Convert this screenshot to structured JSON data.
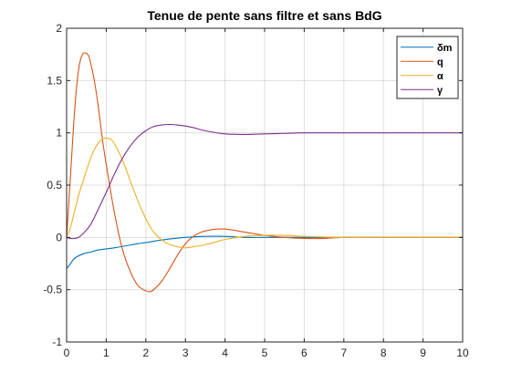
{
  "chart_data": {
    "type": "line",
    "title": "Tenue de pente sans filtre et sans BdG",
    "xlabel": "",
    "ylabel": "",
    "xlim": [
      0,
      10
    ],
    "ylim": [
      -1,
      2
    ],
    "xticks": [
      "0",
      "1",
      "2",
      "3",
      "4",
      "5",
      "6",
      "7",
      "8",
      "9",
      "10"
    ],
    "yticks": [
      "-1",
      "-0.5",
      "0",
      "0.5",
      "1",
      "1.5",
      "2"
    ],
    "grid": true,
    "legend_position": "top-right",
    "series": [
      {
        "name": "δm",
        "color": "#0072BD",
        "x": [
          0,
          0.1,
          0.2,
          0.4,
          0.6,
          0.8,
          1.0,
          1.2,
          1.5,
          1.8,
          2.0,
          2.3,
          2.6,
          3.0,
          3.5,
          4.0,
          4.5,
          5.0,
          5.5,
          6.0,
          7.0,
          8.0,
          9.0,
          10.0
        ],
        "y": [
          -0.3,
          -0.25,
          -0.2,
          -0.16,
          -0.14,
          -0.12,
          -0.11,
          -0.1,
          -0.08,
          -0.06,
          -0.05,
          -0.03,
          -0.015,
          0.0,
          0.01,
          0.01,
          0.0,
          0.0,
          0.0,
          0.0,
          0.0,
          0.0,
          0.0,
          0.0
        ]
      },
      {
        "name": "q",
        "color": "#D95319",
        "x": [
          0,
          0.1,
          0.2,
          0.3,
          0.4,
          0.5,
          0.55,
          0.6,
          0.7,
          0.8,
          0.9,
          1.0,
          1.2,
          1.4,
          1.6,
          1.8,
          2.0,
          2.1,
          2.2,
          2.4,
          2.6,
          2.8,
          3.0,
          3.2,
          3.4,
          3.6,
          3.8,
          4.0,
          4.2,
          4.5,
          5.0,
          5.5,
          6.0,
          6.5,
          7.0,
          8.0,
          9.0,
          10.0
        ],
        "y": [
          0.0,
          0.6,
          1.2,
          1.6,
          1.75,
          1.76,
          1.74,
          1.68,
          1.5,
          1.25,
          0.95,
          0.7,
          0.25,
          -0.1,
          -0.32,
          -0.46,
          -0.51,
          -0.52,
          -0.5,
          -0.42,
          -0.3,
          -0.17,
          -0.06,
          0.01,
          0.05,
          0.07,
          0.08,
          0.08,
          0.07,
          0.05,
          0.02,
          0.0,
          -0.01,
          -0.01,
          0.0,
          0.0,
          0.0,
          0.0
        ]
      },
      {
        "name": "α",
        "color": "#EDB120",
        "x": [
          0,
          0.1,
          0.2,
          0.3,
          0.4,
          0.5,
          0.6,
          0.7,
          0.8,
          0.9,
          1.0,
          1.1,
          1.2,
          1.4,
          1.6,
          1.8,
          2.0,
          2.2,
          2.5,
          2.8,
          3.0,
          3.2,
          3.5,
          3.8,
          4.0,
          4.5,
          5.0,
          5.5,
          6.0,
          7.0,
          8.0,
          9.0,
          10.0
        ],
        "y": [
          0.0,
          0.1,
          0.25,
          0.4,
          0.52,
          0.64,
          0.75,
          0.84,
          0.9,
          0.94,
          0.95,
          0.94,
          0.9,
          0.75,
          0.55,
          0.35,
          0.18,
          0.05,
          -0.05,
          -0.09,
          -0.1,
          -0.09,
          -0.07,
          -0.04,
          -0.02,
          0.01,
          0.02,
          0.02,
          0.01,
          0.0,
          0.0,
          0.0,
          0.0
        ]
      },
      {
        "name": "γ",
        "color": "#7E2F8E",
        "x": [
          0,
          0.1,
          0.2,
          0.3,
          0.4,
          0.6,
          0.8,
          1.0,
          1.2,
          1.4,
          1.6,
          1.8,
          2.0,
          2.2,
          2.4,
          2.6,
          2.8,
          3.0,
          3.2,
          3.5,
          4.0,
          4.5,
          5.0,
          5.5,
          6.0,
          7.0,
          8.0,
          9.0,
          10.0
        ],
        "y": [
          0.0,
          -0.01,
          -0.01,
          0.0,
          0.03,
          0.12,
          0.27,
          0.43,
          0.6,
          0.75,
          0.87,
          0.96,
          1.02,
          1.06,
          1.075,
          1.08,
          1.075,
          1.065,
          1.05,
          1.02,
          0.99,
          0.985,
          0.99,
          0.995,
          1.0,
          1.0,
          1.0,
          1.0,
          1.0
        ]
      }
    ]
  }
}
